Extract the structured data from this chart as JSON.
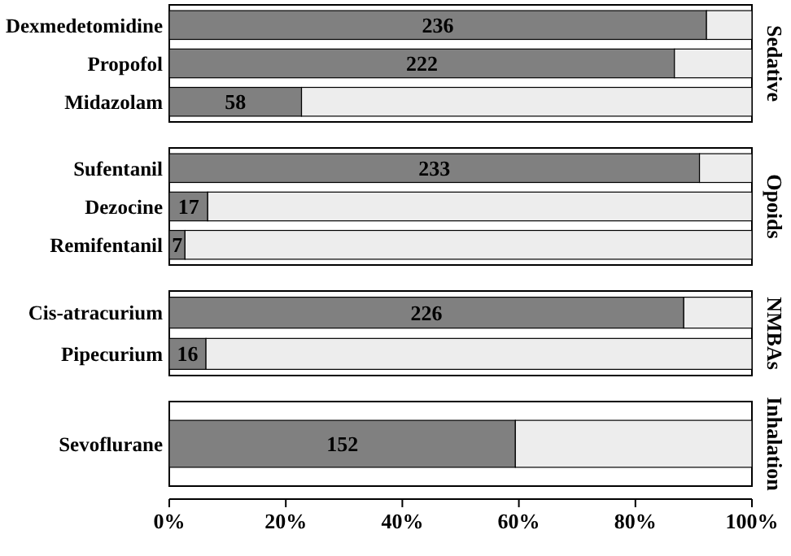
{
  "chart_data": [
    {
      "type": "bar",
      "orientation": "horizontal",
      "stacked": true,
      "y2label": "Sedative",
      "categories": [
        "Dexmedetomidine",
        "Propofol",
        "Midazolam"
      ],
      "xlim": [
        0,
        100
      ],
      "tick_labels": "y",
      "series": [
        {
          "color": "#808080",
          "values": [
            92.2,
            86.7,
            22.7
          ]
        },
        {
          "color": "#ededed",
          "values": [
            7.8,
            13.3,
            77.3
          ]
        }
      ],
      "annotations": [
        "236",
        "222",
        "58"
      ]
    },
    {
      "type": "bar",
      "orientation": "horizontal",
      "stacked": true,
      "y2label": "Opoids",
      "categories": [
        "Sufentanil",
        "Dezocine",
        "Remifentanil"
      ],
      "xlim": [
        0,
        100
      ],
      "tick_labels": "y",
      "series": [
        {
          "color": "#808080",
          "values": [
            91.0,
            6.6,
            2.7
          ]
        },
        {
          "color": "#ededed",
          "values": [
            9.0,
            93.4,
            97.3
          ]
        }
      ],
      "annotations": [
        "233",
        "17",
        "7"
      ]
    },
    {
      "type": "bar",
      "orientation": "horizontal",
      "stacked": true,
      "y2label": "NMBAs",
      "categories": [
        "Cis-atracurium",
        "Pipecurium"
      ],
      "xlim": [
        0,
        100
      ],
      "tick_labels": "y",
      "series": [
        {
          "color": "#808080",
          "values": [
            88.3,
            6.3
          ]
        },
        {
          "color": "#ededed",
          "values": [
            11.7,
            93.7
          ]
        }
      ],
      "annotations": [
        "226",
        "16"
      ]
    },
    {
      "type": "bar",
      "orientation": "horizontal",
      "stacked": true,
      "y2label": "Inhalation",
      "categories": [
        "Sevoflurane"
      ],
      "xlim": [
        0,
        100
      ],
      "xticks": [
        {
          "value": 0,
          "label": "0%"
        },
        {
          "value": 20,
          "label": "20%"
        },
        {
          "value": 40,
          "label": "40%"
        },
        {
          "value": 60,
          "label": "60%"
        },
        {
          "value": 80,
          "label": "80%"
        },
        {
          "value": 100,
          "label": "100%"
        }
      ],
      "series": [
        {
          "color": "#808080",
          "values": [
            59.4
          ]
        },
        {
          "color": "#ededed",
          "values": [
            40.6
          ]
        }
      ],
      "annotations": [
        "152"
      ]
    }
  ]
}
